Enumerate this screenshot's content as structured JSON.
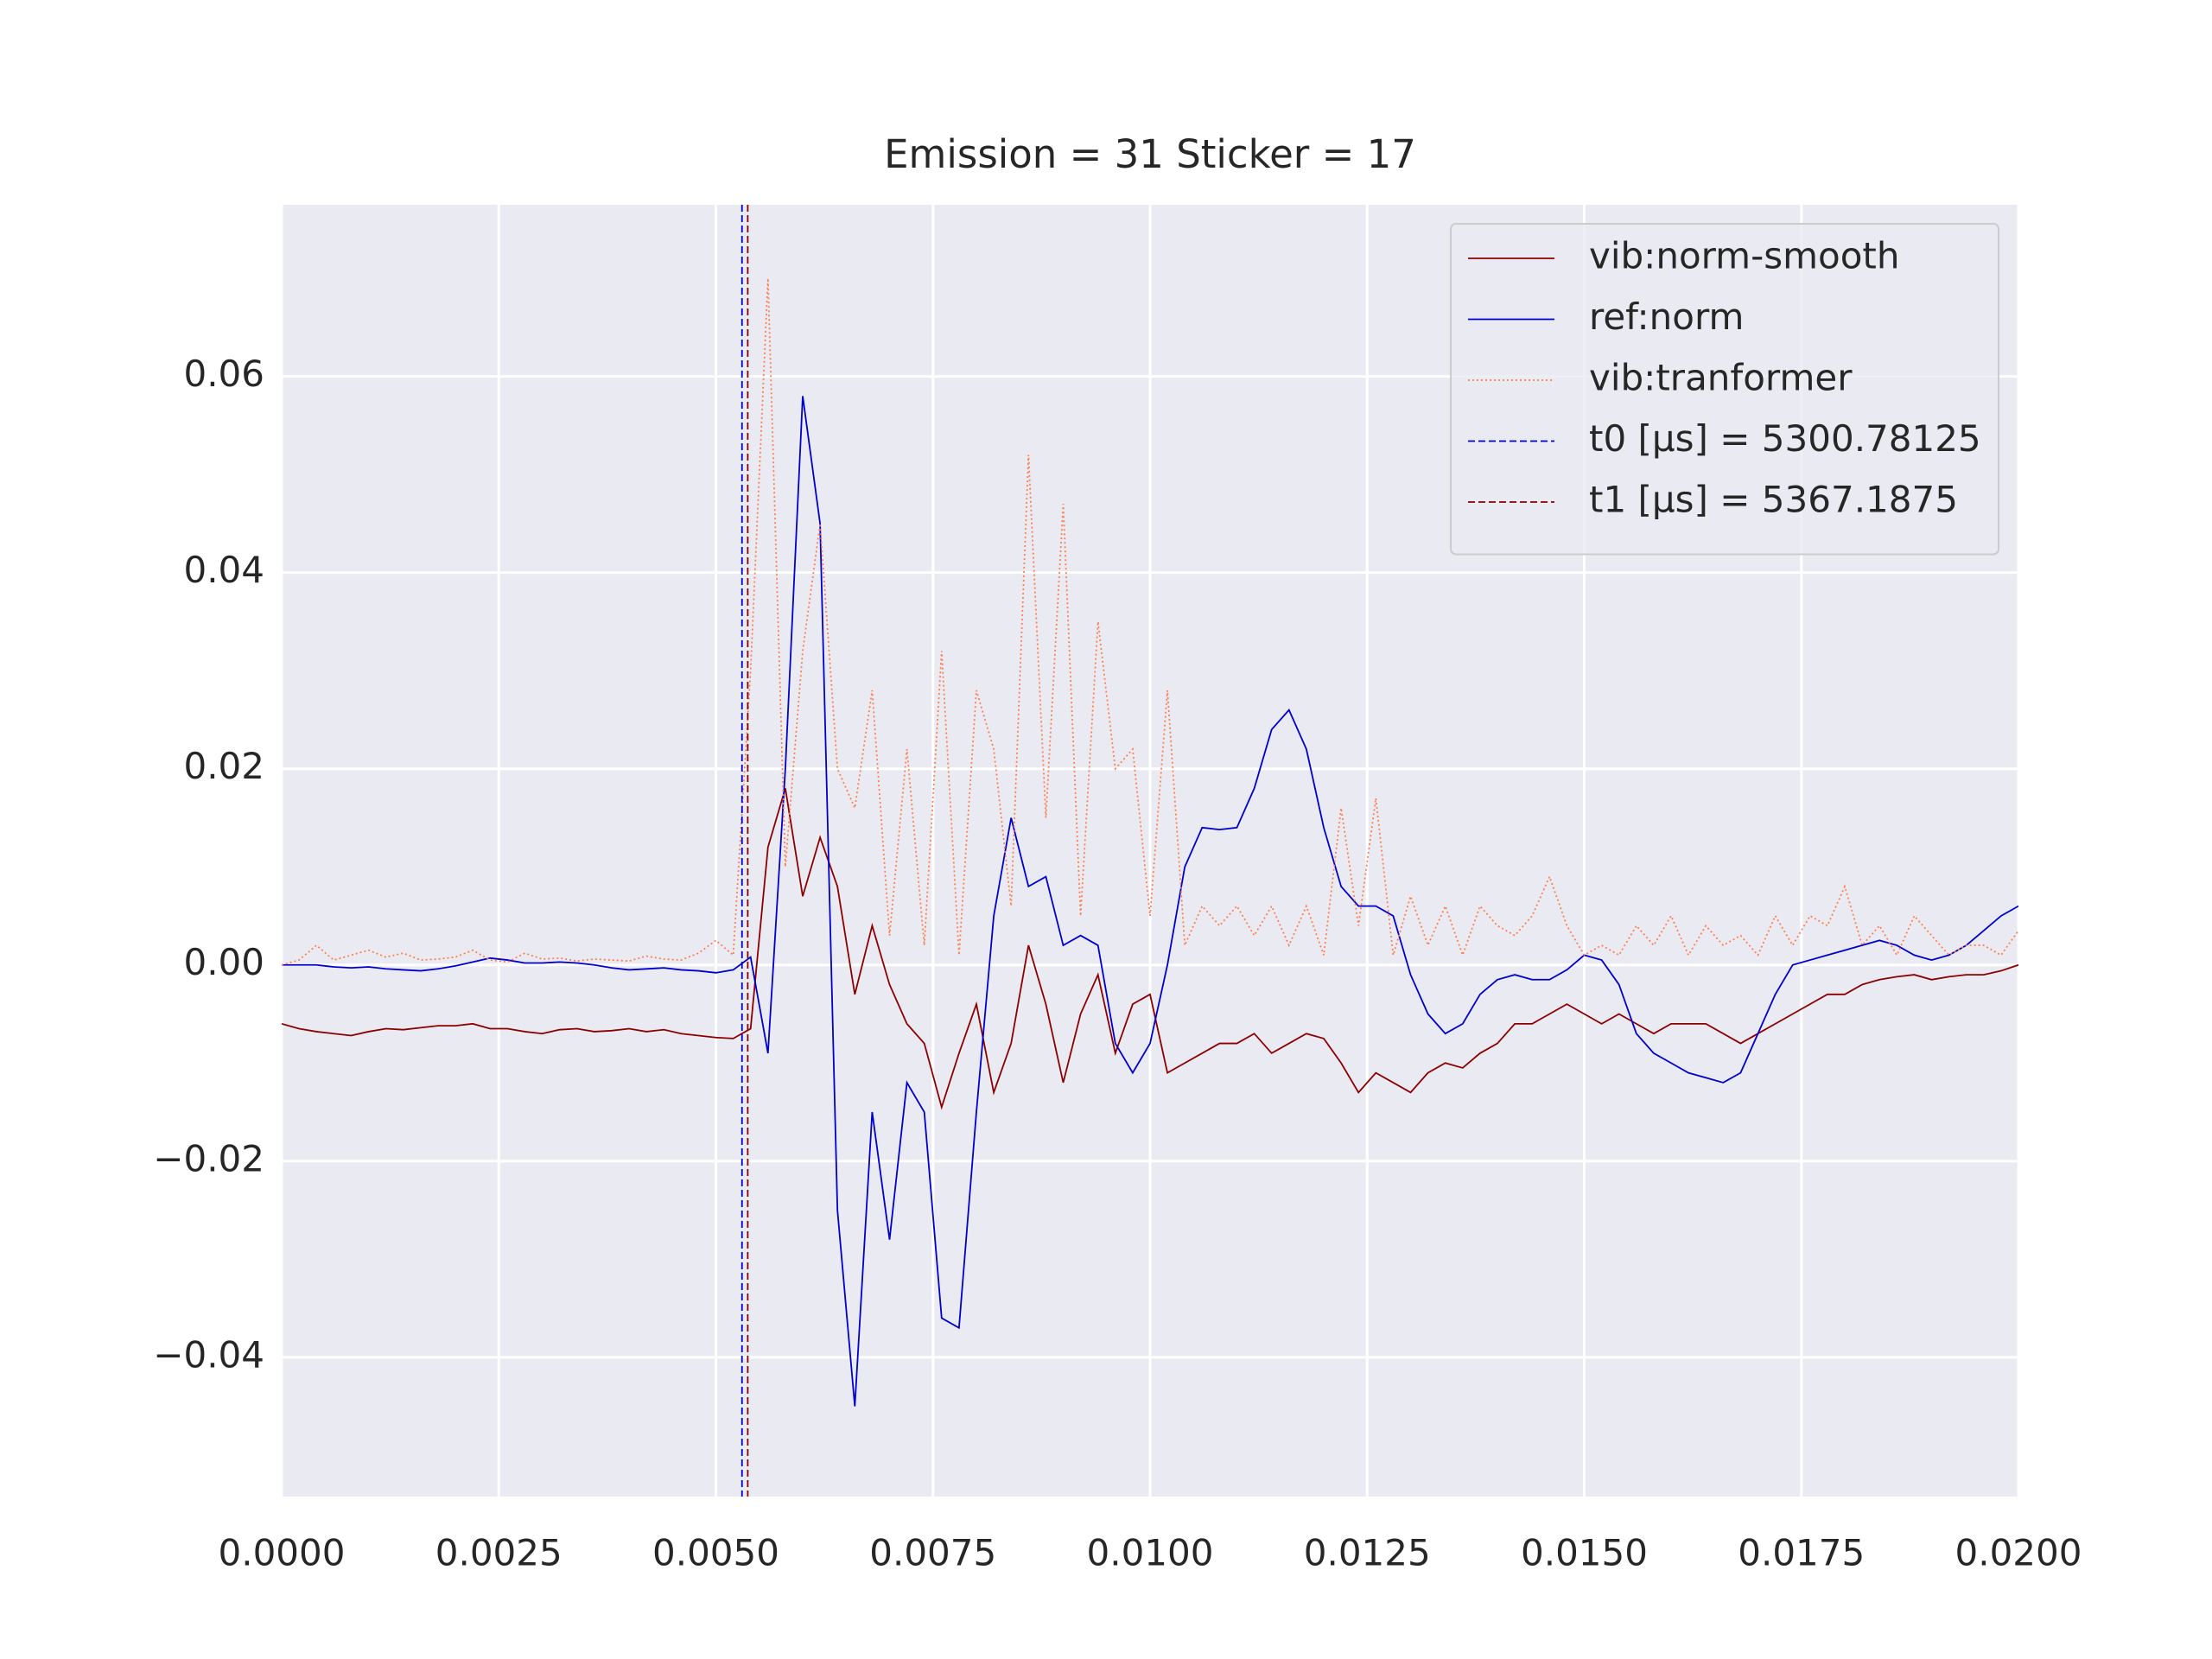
{
  "chart_data": {
    "type": "line",
    "title": "Emission = 31 Sticker = 17",
    "grid": true,
    "legend": "upper right",
    "xlim": [
      0,
      0.02
    ],
    "ylim": [
      -0.0542,
      0.0775
    ],
    "xticks": [
      {
        "value": 0,
        "label": "0.0000"
      },
      {
        "value": 0.0025,
        "label": "0.0025"
      },
      {
        "value": 0.005,
        "label": "0.0050"
      },
      {
        "value": 0.0075,
        "label": "0.0075"
      },
      {
        "value": 0.01,
        "label": "0.0100"
      },
      {
        "value": 0.0125,
        "label": "0.0125"
      },
      {
        "value": 0.015,
        "label": "0.0150"
      },
      {
        "value": 0.0175,
        "label": "0.0175"
      },
      {
        "value": 0.02,
        "label": "0.0200"
      }
    ],
    "yticks": [
      {
        "value": -0.04,
        "label": "−0.04"
      },
      {
        "value": -0.02,
        "label": "−0.02"
      },
      {
        "value": 0,
        "label": "0.00"
      },
      0.02,
      0.04,
      0.06
    ],
    "x": [
      0,
      0.0002,
      0.0004,
      0.0006,
      0.0008,
      0.001,
      0.0012,
      0.0014,
      0.0016,
      0.0018,
      0.002,
      0.0022,
      0.0024,
      0.0026,
      0.0028,
      0.003,
      0.0032,
      0.0034,
      0.0036,
      0.0038,
      0.004,
      0.0042,
      0.0044,
      0.0046,
      0.0048,
      0.005,
      0.0052,
      0.0054,
      0.0056,
      0.0058,
      0.006,
      0.0062,
      0.0064,
      0.0066,
      0.0068,
      0.007,
      0.0072,
      0.0074,
      0.0076,
      0.0078,
      0.008,
      0.0082,
      0.0084,
      0.0086,
      0.0088,
      0.009,
      0.0092,
      0.0094,
      0.0096,
      0.0098,
      0.01,
      0.0102,
      0.0104,
      0.0106,
      0.0108,
      0.011,
      0.0112,
      0.0114,
      0.0116,
      0.0118,
      0.012,
      0.0122,
      0.0124,
      0.0126,
      0.0128,
      0.013,
      0.0132,
      0.0134,
      0.0136,
      0.0138,
      0.014,
      0.0142,
      0.0144,
      0.0146,
      0.0148,
      0.015,
      0.0152,
      0.0154,
      0.0156,
      0.0158,
      0.016,
      0.0162,
      0.0164,
      0.0166,
      0.0168,
      0.017,
      0.0172,
      0.0174,
      0.0176,
      0.0178,
      0.018,
      0.0182,
      0.0184,
      0.0186,
      0.0188,
      0.019,
      0.0192,
      0.0194,
      0.0196,
      0.0198,
      0.02
    ],
    "series": [
      {
        "name": "vib:norm-smooth",
        "color": "#8b0000",
        "linestyle": "solid",
        "values": [
          -0.006,
          -0.0065,
          -0.0068,
          -0.007,
          -0.0072,
          -0.0068,
          -0.0065,
          -0.0066,
          -0.0064,
          -0.0062,
          -0.0062,
          -0.006,
          -0.0065,
          -0.0065,
          -0.0068,
          -0.007,
          -0.0066,
          -0.0065,
          -0.0068,
          -0.0067,
          -0.0065,
          -0.0068,
          -0.0066,
          -0.007,
          -0.0072,
          -0.0074,
          -0.0075,
          -0.0065,
          0.012,
          0.018,
          0.007,
          0.013,
          0.008,
          -0.003,
          0.004,
          -0.002,
          -0.006,
          -0.008,
          -0.0145,
          -0.009,
          -0.004,
          -0.013,
          -0.008,
          0.002,
          -0.004,
          -0.012,
          -0.005,
          -0.001,
          -0.009,
          -0.004,
          -0.003,
          -0.011,
          -0.01,
          -0.009,
          -0.008,
          -0.008,
          -0.007,
          -0.009,
          -0.008,
          -0.007,
          -0.0075,
          -0.01,
          -0.013,
          -0.011,
          -0.012,
          -0.013,
          -0.011,
          -0.01,
          -0.0105,
          -0.009,
          -0.008,
          -0.006,
          -0.006,
          -0.005,
          -0.004,
          -0.005,
          -0.006,
          -0.005,
          -0.006,
          -0.007,
          -0.006,
          -0.006,
          -0.006,
          -0.007,
          -0.008,
          -0.007,
          -0.006,
          -0.005,
          -0.004,
          -0.003,
          -0.003,
          -0.002,
          -0.0015,
          -0.0012,
          -0.001,
          -0.0015,
          -0.0012,
          -0.001,
          -0.001,
          -0.0006,
          0
        ]
      },
      {
        "name": "ref:norm",
        "color": "#0000cd",
        "linestyle": "solid",
        "values": [
          0,
          0,
          0,
          -0.0002,
          -0.0003,
          -0.0002,
          -0.0004,
          -0.0005,
          -0.0006,
          -0.0004,
          -0.0001,
          0.0003,
          0.0007,
          0.0005,
          0.0002,
          0.0002,
          0.0003,
          0.0002,
          0,
          -0.0003,
          -0.0005,
          -0.0004,
          -0.0003,
          -0.0005,
          -0.0006,
          -0.0008,
          -0.0005,
          0.0008,
          -0.009,
          0.02,
          0.058,
          0.045,
          -0.025,
          -0.045,
          -0.015,
          -0.028,
          -0.012,
          -0.015,
          -0.036,
          -0.037,
          -0.015,
          0.005,
          0.015,
          0.008,
          0.009,
          0.002,
          0.003,
          0.002,
          -0.008,
          -0.011,
          -0.008,
          0,
          0.01,
          0.014,
          0.0138,
          0.014,
          0.018,
          0.024,
          0.026,
          0.022,
          0.014,
          0.008,
          0.006,
          0.006,
          0.005,
          -0.001,
          -0.005,
          -0.007,
          -0.006,
          -0.003,
          -0.0015,
          -0.001,
          -0.0015,
          -0.0015,
          -0.0005,
          0.001,
          0.0005,
          -0.002,
          -0.007,
          -0.009,
          -0.01,
          -0.011,
          -0.0115,
          -0.012,
          -0.011,
          -0.007,
          -0.003,
          0,
          0.0005,
          0.001,
          0.0015,
          0.002,
          0.0025,
          0.002,
          0.001,
          0.0005,
          0.001,
          0.002,
          0.0035,
          0.005,
          0.006
        ]
      },
      {
        "name": "vib:tranformer",
        "color": "#ff7f50",
        "linestyle": "dotted",
        "values": [
          0,
          0.0005,
          0.002,
          0.0005,
          0.001,
          0.0015,
          0.0008,
          0.0012,
          0.0005,
          0.0006,
          0.0008,
          0.0015,
          0.0005,
          0.0003,
          0.0012,
          0.0006,
          0.0007,
          0.0004,
          0.0006,
          0.0005,
          0.0004,
          0.0009,
          0.0006,
          0.0005,
          0.0012,
          0.0025,
          0.001,
          0.03,
          0.07,
          0.01,
          0.032,
          0.045,
          0.02,
          0.016,
          0.028,
          0.003,
          0.022,
          0.002,
          0.032,
          0.001,
          0.028,
          0.022,
          0.006,
          0.052,
          0.015,
          0.047,
          0.005,
          0.035,
          0.02,
          0.022,
          0.005,
          0.028,
          0.002,
          0.006,
          0.004,
          0.006,
          0.003,
          0.006,
          0.002,
          0.006,
          0.001,
          0.016,
          0.004,
          0.017,
          0.001,
          0.007,
          0.002,
          0.006,
          0.001,
          0.006,
          0.004,
          0.003,
          0.005,
          0.009,
          0.004,
          0.001,
          0.002,
          0.001,
          0.004,
          0.002,
          0.005,
          0.001,
          0.004,
          0.002,
          0.003,
          0.001,
          0.005,
          0.002,
          0.005,
          0.004,
          0.008,
          0.002,
          0.004,
          0.001,
          0.005,
          0.003,
          0.001,
          0.002,
          0.002,
          0.001,
          0.0035
        ]
      }
    ],
    "vlines": [
      {
        "name": "t0 [μs] = 5300.78125",
        "x": 0.00530078125,
        "color": "#0000cd",
        "linestyle": "dashed"
      },
      {
        "name": "t1 [μs] = 5367.1875",
        "x": 0.0053671875,
        "color": "#8b0000",
        "linestyle": "dashed"
      }
    ]
  }
}
